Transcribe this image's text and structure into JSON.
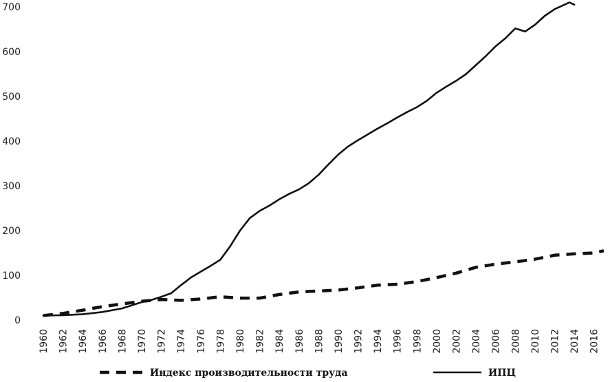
{
  "chart_data": {
    "type": "line",
    "title": "",
    "xlabel": "",
    "ylabel": "",
    "xlim": [
      1960,
      2017
    ],
    "ylim": [
      0,
      700
    ],
    "grid": false,
    "legend_position": "bottom",
    "x_ticks": [
      "1960",
      "1962",
      "1964",
      "1966",
      "1968",
      "1970",
      "1972",
      "1974",
      "1976",
      "1978",
      "1980",
      "1982",
      "1984",
      "1986",
      "1988",
      "1990",
      "1992",
      "1994",
      "1996",
      "1998",
      "2000",
      "2002",
      "2004",
      "2006",
      "2008",
      "2010",
      "2012",
      "2014",
      "2016"
    ],
    "y_ticks": [
      "0",
      "100",
      "200",
      "300",
      "400",
      "500",
      "600",
      "700"
    ],
    "series": [
      {
        "name": "Индекс производительности труда",
        "style": "dashed",
        "color": "#111111",
        "x": [
          1960,
          1962,
          1964,
          1966,
          1968,
          1970,
          1972,
          1974,
          1976,
          1978,
          1980,
          1982,
          1984,
          1986,
          1988,
          1990,
          1992,
          1994,
          1996,
          1998,
          2000,
          2002,
          2004,
          2006,
          2008,
          2010,
          2012,
          2014,
          2016,
          2017
        ],
        "y": [
          10,
          15,
          22,
          30,
          36,
          42,
          46,
          44,
          47,
          52,
          49,
          49,
          57,
          63,
          65,
          67,
          72,
          78,
          80,
          86,
          95,
          105,
          118,
          125,
          130,
          136,
          145,
          148,
          150,
          155
        ]
      },
      {
        "name": "ИПЦ",
        "style": "solid",
        "color": "#111111",
        "x": [
          1960,
          1962,
          1964,
          1966,
          1968,
          1970,
          1971,
          1972,
          1973,
          1974,
          1975,
          1976,
          1977,
          1978,
          1979,
          1980,
          1981,
          1982,
          1983,
          1984,
          1985,
          1986,
          1987,
          1988,
          1989,
          1990,
          1991,
          1992,
          1993,
          1994,
          1995,
          1996,
          1997,
          1998,
          1999,
          2000,
          2001,
          2002,
          2003,
          2004,
          2005,
          2006,
          2007,
          2008,
          2009,
          2010,
          2011,
          2012,
          2013,
          2013.5,
          2014
        ],
        "y": [
          10,
          11,
          13,
          18,
          26,
          40,
          45,
          52,
          60,
          78,
          95,
          108,
          121,
          135,
          165,
          200,
          228,
          244,
          256,
          270,
          282,
          292,
          306,
          325,
          348,
          370,
          388,
          402,
          415,
          428,
          440,
          453,
          465,
          476,
          490,
          508,
          522,
          535,
          550,
          570,
          590,
          612,
          630,
          652,
          645,
          660,
          680,
          695,
          705,
          710,
          705
        ]
      }
    ]
  }
}
